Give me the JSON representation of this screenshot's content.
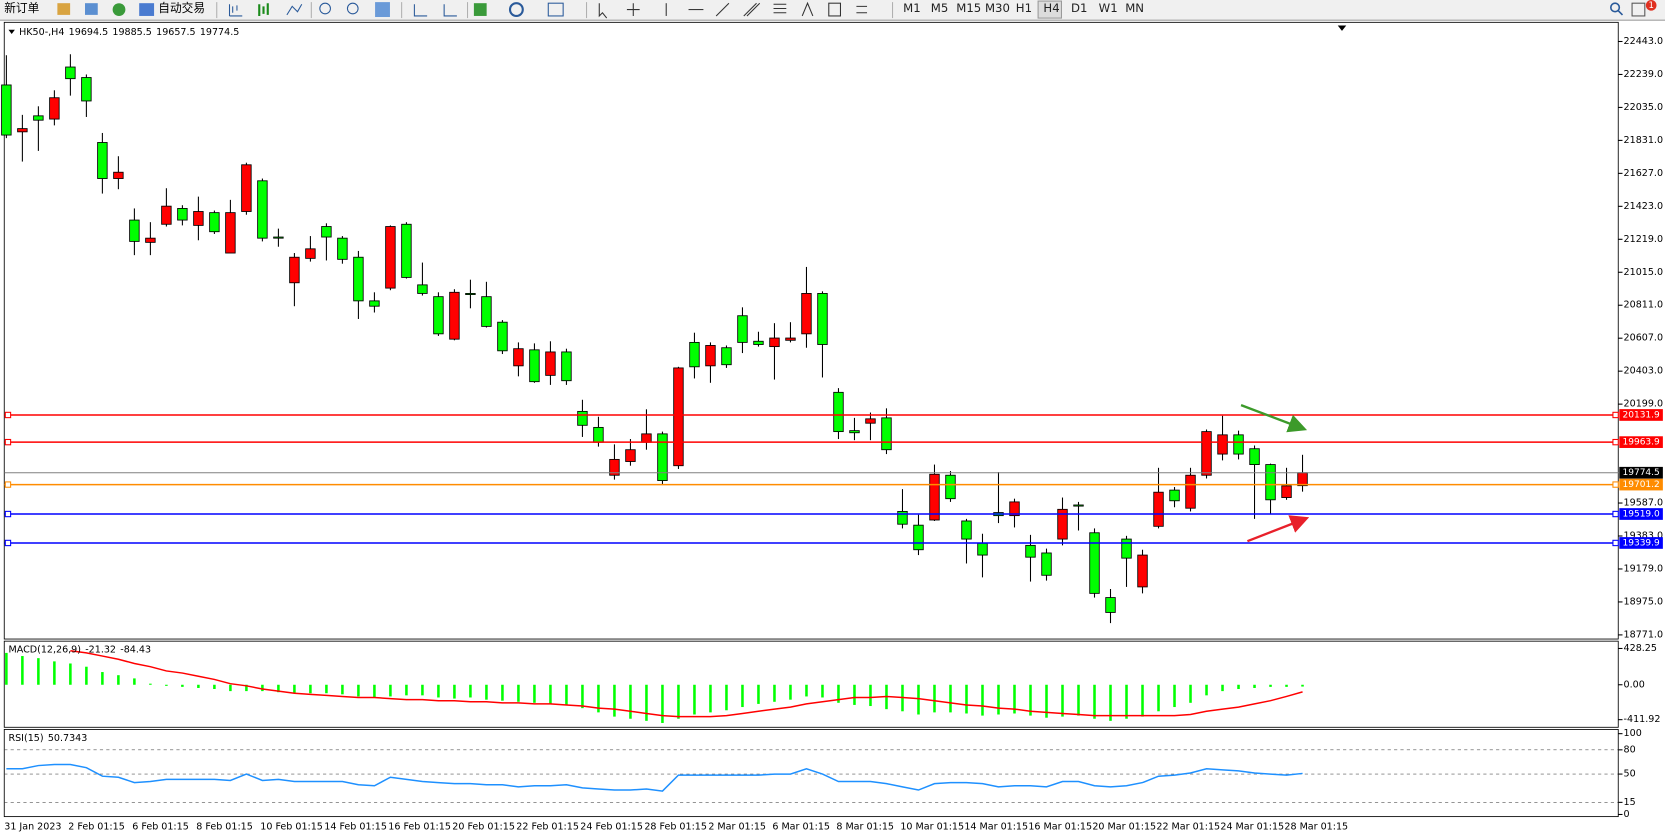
{
  "toolbar": {
    "new_order": "新订单",
    "auto_trading": "自动交易",
    "timeframes": [
      "M1",
      "M5",
      "M15",
      "M30",
      "H1",
      "H4",
      "D1",
      "W1",
      "MN"
    ],
    "badge": "1"
  },
  "chart_data": [
    {
      "type": "candlestick",
      "title": "HK50-,H4",
      "categories": [
        "31 Jan 2023",
        null,
        null,
        null,
        "2 Feb 01:15",
        null,
        null,
        null,
        "6 Feb 01:15",
        null,
        null,
        null,
        "8 Feb 01:15",
        null,
        null,
        null,
        "10 Feb 01:15",
        null,
        null,
        null,
        "14 Feb 01:15",
        null,
        null,
        null,
        "16 Feb 01:15",
        null,
        null,
        null,
        "20 Feb 01:15",
        null,
        null,
        null,
        "22 Feb 01:15",
        null,
        null,
        null,
        "24 Feb 01:15",
        null,
        null,
        null,
        "28 Feb 01:15",
        null,
        null,
        null,
        "2 Mar 01:15",
        null,
        null,
        null,
        "6 Mar 01:15",
        null,
        null,
        null,
        "8 Mar 01:15",
        null,
        null,
        null,
        "10 Mar 01:15",
        null,
        null,
        null,
        "14 Mar 01:15",
        null,
        null,
        null,
        "16 Mar 01:15",
        null,
        null,
        null,
        "20 Mar 01:15",
        null,
        null,
        null,
        "22 Mar 01:15",
        null,
        null,
        null,
        "24 Mar 01:15",
        null,
        null,
        null,
        "28 Mar 01:15",
        null
      ],
      "open": [
        22174,
        21884,
        21983,
        21963,
        22285,
        22220,
        21818,
        21595,
        21338,
        21200,
        21312,
        21410,
        21305,
        21384,
        21134,
        21391,
        21581,
        21233,
        20950,
        21101,
        21298,
        21226,
        21108,
        20838,
        20917,
        21312,
        20937,
        20864,
        20601,
        20884,
        20864,
        20706,
        20436,
        20535,
        20377,
        20522,
        20154,
        20055,
        19759,
        19844,
        19963,
        20015,
        19818,
        20581,
        20436,
        20548,
        20746,
        20588,
        20555,
        20594,
        20634,
        20884,
        20272,
        20035,
        20081,
        20114,
        19535,
        19450,
        19482,
        19759,
        19476,
        19338,
        19528,
        19509,
        19325,
        19278,
        19364,
        19575,
        19403,
        19002,
        19364,
        19068,
        19443,
        19667,
        19555,
        19759,
        19890,
        20009,
        19923,
        19825,
        19621,
        19694.5
      ],
      "high": [
        22358,
        21989,
        22042,
        22141,
        22364,
        22239,
        21877,
        21733,
        21410,
        21325,
        21535,
        21430,
        21483,
        21397,
        21463,
        21693,
        21595,
        21285,
        21134,
        21239,
        21318,
        21239,
        21147,
        20891,
        21305,
        21325,
        21075,
        20891,
        20910,
        20969,
        20956,
        20719,
        20581,
        20575,
        20588,
        20542,
        20226,
        20121,
        19950,
        19983,
        20167,
        20029,
        20430,
        20641,
        20581,
        20562,
        20798,
        20647,
        20700,
        20706,
        21048,
        20897,
        20298,
        20114,
        20147,
        20173,
        19673,
        19515,
        19825,
        19785,
        19489,
        19397,
        19779,
        19614,
        19390,
        19305,
        19621,
        19594,
        19430,
        19055,
        19384,
        19298,
        19805,
        19686,
        19805,
        20042,
        20127,
        20035,
        19943,
        19831,
        19805,
        19885.5
      ],
      "low": [
        21845,
        21700,
        21766,
        21924,
        22108,
        21976,
        21502,
        21529,
        21121,
        21121,
        21298,
        21305,
        21213,
        21252,
        21134,
        21371,
        21206,
        21173,
        20805,
        21081,
        21088,
        21068,
        20726,
        20766,
        20904,
        20976,
        20871,
        20621,
        20594,
        20792,
        20673,
        20509,
        20371,
        20331,
        20318,
        20318,
        19996,
        19936,
        19732,
        19818,
        19917,
        19700,
        19798,
        20358,
        20331,
        20423,
        20515,
        20555,
        20351,
        20581,
        20548,
        20364,
        19983,
        19976,
        19976,
        19890,
        19430,
        19265,
        19476,
        19594,
        19213,
        19127,
        19463,
        19436,
        19101,
        19107,
        19325,
        19417,
        19002,
        18844,
        19068,
        19028,
        19430,
        19561,
        19535,
        19739,
        19851,
        19857,
        19489,
        19522,
        19607,
        19657.5
      ],
      "close": [
        21864,
        21904,
        21956,
        22095,
        22213,
        22075,
        21595,
        21634,
        21206,
        21226,
        21424,
        21338,
        21391,
        21266,
        21384,
        21680,
        21226,
        21226,
        21108,
        21160,
        21233,
        21095,
        20838,
        20805,
        21298,
        20983,
        20884,
        20634,
        20891,
        20877,
        20680,
        20529,
        20542,
        20338,
        20522,
        20344,
        20068,
        19963,
        19857,
        19917,
        20015,
        19726,
        20423,
        20430,
        20562,
        20443,
        20581,
        20568,
        20608,
        20608,
        20884,
        20568,
        20029,
        20022,
        20108,
        19917,
        19456,
        19298,
        19765,
        19614,
        19364,
        19265,
        19509,
        19594,
        19252,
        19140,
        19548,
        19568,
        19028,
        18910,
        19246,
        19265,
        19654,
        19601,
        19759,
        20029,
        20009,
        19890,
        19825,
        19607,
        19693,
        19774.5
      ],
      "up_color": "#ff0000",
      "down_color": "#00ff00",
      "last_line_color": "#808080",
      "ylim": [
        18752,
        22555
      ],
      "yticks": [
        {
          "value": 22443,
          "label": "22443.0"
        },
        {
          "value": 22239,
          "label": "22239.0"
        },
        {
          "value": 22035,
          "label": "22035.0"
        },
        {
          "value": 21831,
          "label": "21831.0"
        },
        {
          "value": 21627,
          "label": "21627.0"
        },
        {
          "value": 21423,
          "label": "21423.0"
        },
        {
          "value": 21219,
          "label": "21219.0"
        },
        {
          "value": 21015,
          "label": "21015.0"
        },
        {
          "value": 20811,
          "label": "20811.0"
        },
        {
          "value": 20607,
          "label": "20607.0"
        },
        {
          "value": 20403,
          "label": "20403.0"
        },
        {
          "value": 20199,
          "label": "20199.0"
        },
        {
          "value": 19587,
          "label": "19587.0"
        },
        {
          "value": 19383,
          "label": "19383.0"
        },
        {
          "value": 19179,
          "label": "19179.0"
        },
        {
          "value": 18975,
          "label": "18975.0"
        },
        {
          "value": 18771,
          "label": "18771.0"
        }
      ],
      "levels": [
        {
          "value": 20131.9,
          "color": "#ff0000"
        },
        {
          "value": 19963.9,
          "color": "#ff0000"
        },
        {
          "value": 19701.2,
          "color": "#ff8c00"
        },
        {
          "value": 19519,
          "label": "19519.0",
          "color": "#0000ff"
        },
        {
          "value": 19339.9,
          "color": "#0000ff"
        }
      ]
    },
    {
      "type": "macd",
      "title": "MACD(12,26,9)",
      "values": [
        376,
        339,
        314,
        276,
        251,
        213,
        150,
        113,
        75,
        13,
        -13,
        -25,
        -38,
        -50,
        -75,
        -75,
        -75,
        -88,
        -100,
        -100,
        -100,
        -113,
        -138,
        -150,
        -138,
        -125,
        -125,
        -150,
        -163,
        -150,
        -176,
        -188,
        -201,
        -213,
        -226,
        -238,
        -276,
        -326,
        -376,
        -401,
        -426,
        -451,
        -401,
        -351,
        -326,
        -301,
        -263,
        -226,
        -201,
        -176,
        -138,
        -150,
        -213,
        -238,
        -251,
        -288,
        -313,
        -351,
        -326,
        -326,
        -339,
        -364,
        -351,
        -339,
        -364,
        -389,
        -376,
        -364,
        -401,
        -426,
        -401,
        -376,
        -313,
        -263,
        -213,
        -125,
        -75,
        -50,
        -38,
        -25,
        -25,
        -21.32
      ],
      "signal": [
        null,
        null,
        null,
        null,
        401,
        376,
        339,
        301,
        251,
        213,
        163,
        138,
        100,
        63,
        13,
        -13,
        -50,
        -75,
        -100,
        -113,
        -125,
        -138,
        -150,
        -150,
        -163,
        -176,
        -176,
        -188,
        -188,
        -201,
        -201,
        -213,
        -213,
        -226,
        -226,
        -238,
        -251,
        -276,
        -288,
        -313,
        -339,
        -364,
        -376,
        -376,
        -376,
        -364,
        -339,
        -313,
        -288,
        -263,
        -226,
        -201,
        -176,
        -150,
        -150,
        -138,
        -150,
        -163,
        -188,
        -213,
        -238,
        -251,
        -276,
        -288,
        -313,
        -326,
        -339,
        -351,
        -364,
        -364,
        -364,
        -364,
        -364,
        -364,
        -351,
        -313,
        -288,
        -263,
        -226,
        -188,
        -138,
        -84.43
      ],
      "color": "#00ff00",
      "signal_color": "#ff0000",
      "ylim": [
        -502,
        502
      ],
      "yticks": [
        428.25,
        {
          "value": 0,
          "label": "0.00"
        },
        -411.92
      ]
    },
    {
      "type": "line",
      "title": "RSI(15)",
      "values": [
        56.6,
        56.6,
        60.5,
        61.8,
        61.8,
        57.9,
        47.4,
        46,
        39.5,
        40.8,
        43.4,
        43.4,
        43.4,
        43.4,
        42.1,
        50,
        42.1,
        43.4,
        40.8,
        40.8,
        40.8,
        40.8,
        36.8,
        35.5,
        46,
        43.4,
        40.8,
        39.5,
        38.2,
        38.2,
        36.8,
        36.8,
        34.2,
        35.5,
        35.5,
        36.8,
        32.9,
        31.6,
        30.3,
        30.3,
        31.6,
        28.9,
        48.7,
        48.7,
        48.7,
        48.7,
        48.7,
        48.7,
        50,
        50,
        56.6,
        50,
        40.8,
        40.8,
        40.8,
        38.2,
        34.2,
        30.3,
        38.2,
        39.5,
        39.5,
        38.2,
        34.2,
        35.5,
        35.5,
        34.2,
        40.8,
        40.8,
        35.5,
        34.2,
        35.5,
        39.5,
        47.4,
        48.7,
        51.3,
        56.6,
        55.3,
        53.9,
        51.3,
        50,
        48.7,
        50.7343
      ],
      "color": "#1e90ff",
      "ylim": [
        0,
        100
      ],
      "yticks": [
        100,
        80,
        50,
        15,
        0
      ]
    }
  ]
}
